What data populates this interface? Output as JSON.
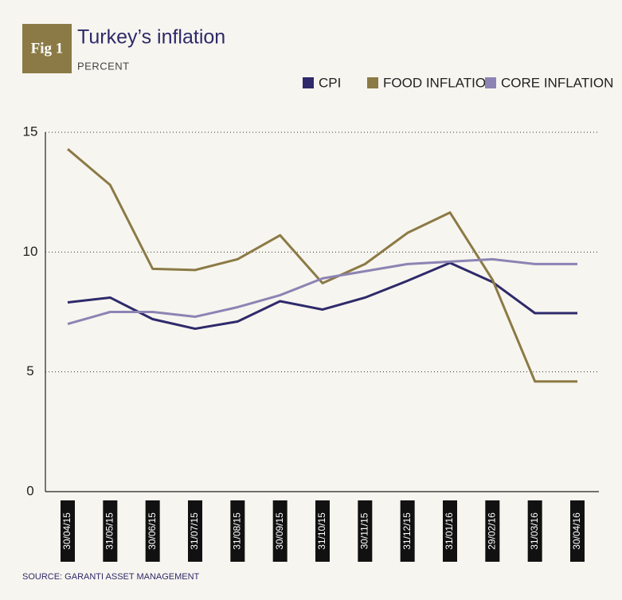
{
  "chart_data": {
    "type": "line",
    "fig_label": "Fig 1",
    "title": "Turkey’s inflation",
    "subtitle": "PERCENT",
    "categories": [
      "30/04/15",
      "31/05/15",
      "30/06/15",
      "31/07/15",
      "31/08/15",
      "30/09/15",
      "31/10/15",
      "30/11/15",
      "31/12/15",
      "31/01/16",
      "29/02/16",
      "31/03/16",
      "30/04/16"
    ],
    "series": [
      {
        "name": "CPI",
        "color": "#2e2a6b",
        "values": [
          7.9,
          8.1,
          7.2,
          6.8,
          7.1,
          7.95,
          7.6,
          8.1,
          8.8,
          9.55,
          8.75,
          7.45,
          7.45
        ]
      },
      {
        "name": "FOOD INFLATION",
        "color": "#8b7a45",
        "values": [
          14.3,
          12.8,
          9.3,
          9.25,
          9.7,
          10.7,
          8.7,
          9.5,
          10.8,
          11.65,
          8.85,
          4.6,
          4.6
        ]
      },
      {
        "name": "CORE INFLATION",
        "color": "#8c84b4",
        "values": [
          7.0,
          7.5,
          7.5,
          7.3,
          7.7,
          8.2,
          8.9,
          9.2,
          9.5,
          9.6,
          9.7,
          9.5,
          9.5
        ]
      }
    ],
    "ylim": [
      0,
      15
    ],
    "yticks": [
      0,
      5,
      10,
      15
    ],
    "grid": true,
    "source": "SOURCE: GARANTI ASSET MANAGEMENT"
  }
}
